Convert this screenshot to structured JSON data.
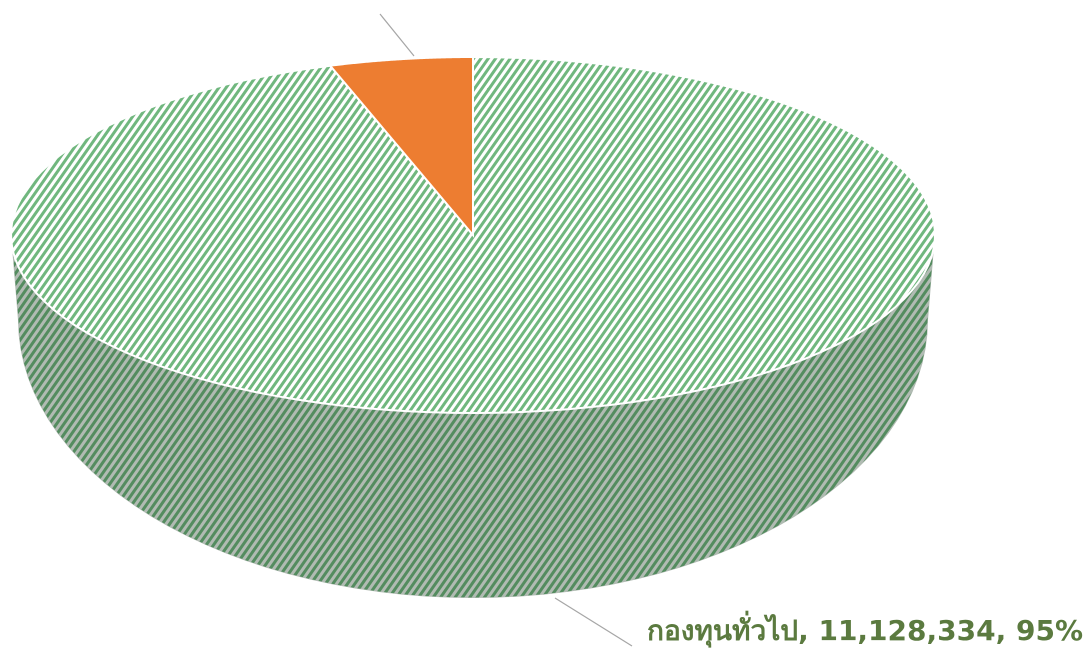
{
  "chart_data": {
    "type": "pie3d",
    "values": [
      95,
      5
    ],
    "value_labels": [
      "กองทุนทั่วไป, 11,128,334, 95%",
      null
    ],
    "colors": [
      "#70b77e",
      "#ed7d31"
    ],
    "hatch": [
      true,
      false
    ],
    "label_color": "#5b7a3f"
  }
}
